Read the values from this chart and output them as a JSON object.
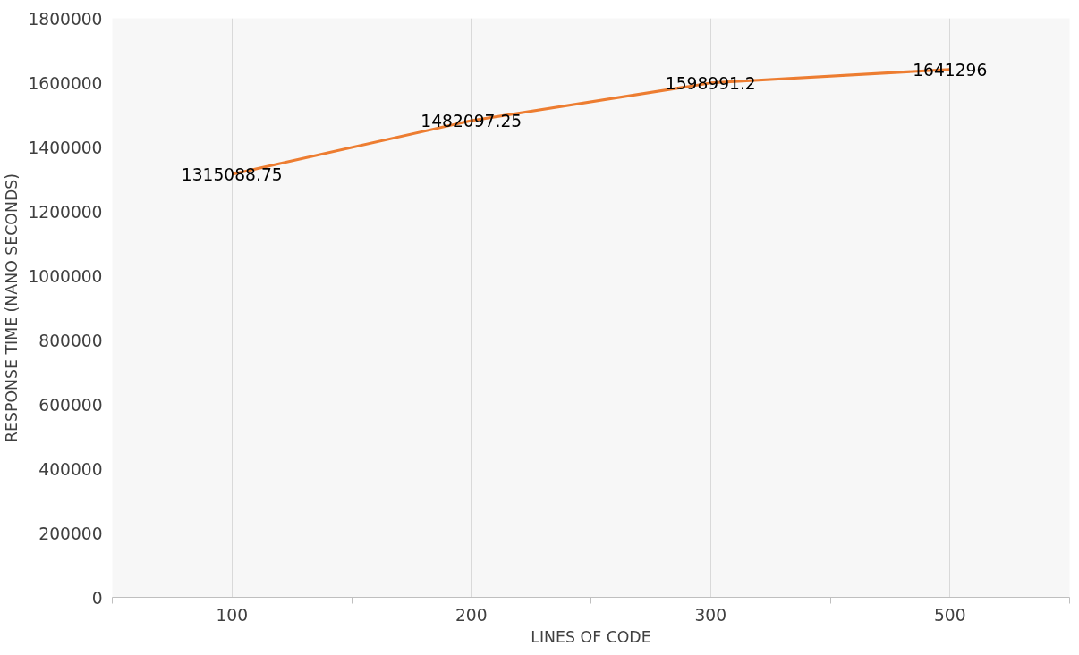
{
  "chart_data": {
    "type": "line",
    "xlabel": "LINES OF CODE",
    "ylabel": "RESPONSE TIME (NANO SECONDS)",
    "categories": [
      "100",
      "200",
      "300",
      "500"
    ],
    "series": [
      {
        "color": "#ed7d31",
        "values": [
          1315088.75,
          1482097.25,
          1598991.2,
          1641296
        ]
      }
    ],
    "ylim": [
      0,
      1800000
    ],
    "yticks": [
      0,
      200000,
      400000,
      600000,
      800000,
      1000000,
      1200000,
      1400000,
      1600000,
      1800000
    ],
    "grid": "x",
    "data_labels": true,
    "marker": "none",
    "line_style": "solid"
  }
}
